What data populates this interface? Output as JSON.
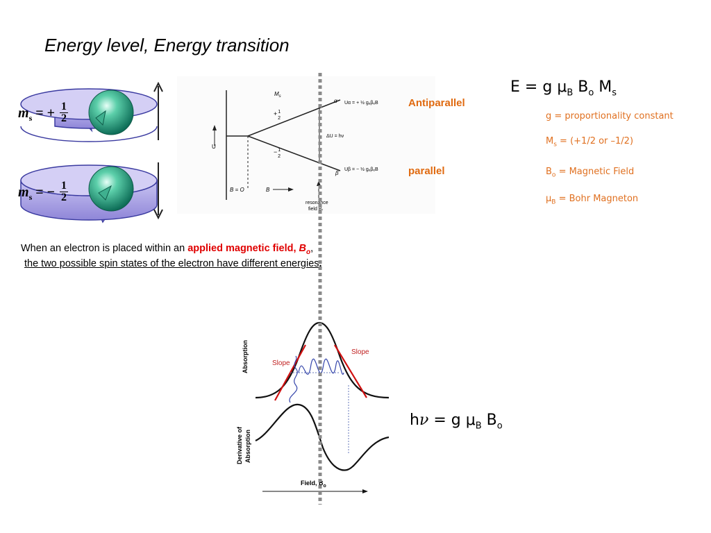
{
  "title": "Energy level, Energy transition",
  "main_equation": {
    "E": "E",
    "eq": "=",
    "g": "g",
    "mu": "μ",
    "mu_sub": "B",
    "B": "B",
    "B_sub": "o",
    "M": "M",
    "M_sub": "s"
  },
  "definitions": {
    "g": "g = proportionality constant",
    "ms_prefix": "M",
    "ms_sub": "s",
    "ms_text": " = (+1/2 or –1/2)",
    "bo_prefix": "B",
    "bo_sub": "o",
    "bo_text": " = Magnetic Field",
    "mub_prefix": "μ",
    "mub_sub": "B",
    "mub_text": " = Bohr Magneton"
  },
  "labels": {
    "antiparallel": "Antiparallel",
    "parallel": "parallel"
  },
  "spin_states": {
    "up": {
      "label": "m",
      "sub": "s",
      "rhs": "= +",
      "num": "1",
      "den": "2"
    },
    "down": {
      "label": "m",
      "sub": "s",
      "rhs": "= −",
      "num": "1",
      "den": "2"
    }
  },
  "energy_diagram": {
    "ms_axis": "M",
    "ms_axis_sub": "s",
    "plus_half": "+",
    "minus_half": "−",
    "half_num": "1",
    "half_den": "2",
    "alpha": "α",
    "beta": "β",
    "u_alpha": "Uα = + ½ gₑβₑB",
    "u_beta": "Uβ = − ½ gₑβₑB",
    "delta_u": "ΔU = hν",
    "u_axis": "U",
    "b_zero": "B = O",
    "b_axis": "B",
    "resonance_1": "resonance",
    "resonance_2": "field Bᵣ"
  },
  "caption": {
    "line1_prefix": "When an electron is placed within an ",
    "line1_highlight": "applied magnetic field, ",
    "line1_highlight_var": "B",
    "line1_highlight_sub": "o",
    "line1_suffix": ",",
    "line2": "the two possible spin states of the electron have different energies",
    "line2_end": "."
  },
  "absorption_plot": {
    "ylabel_top": "Absorption",
    "ylabel_bottom_1": "Derivative of",
    "ylabel_bottom_2": "Absorption",
    "slope_left": "Slope",
    "slope_right": "Slope",
    "xlabel": "Field, B",
    "xlabel_sub": "o"
  },
  "resonance_equation": {
    "h": "h",
    "nu": "ν",
    "eq": "=",
    "g": "g",
    "mu": "μ",
    "mu_sub": "B",
    "B": "B",
    "B_sub": "o"
  },
  "colors": {
    "orange": "#e06a10",
    "red": "#e00000",
    "wave_blue": "#3344aa",
    "ring_purple": "#b0a8e8",
    "sphere_teal": "#2a9d80"
  }
}
